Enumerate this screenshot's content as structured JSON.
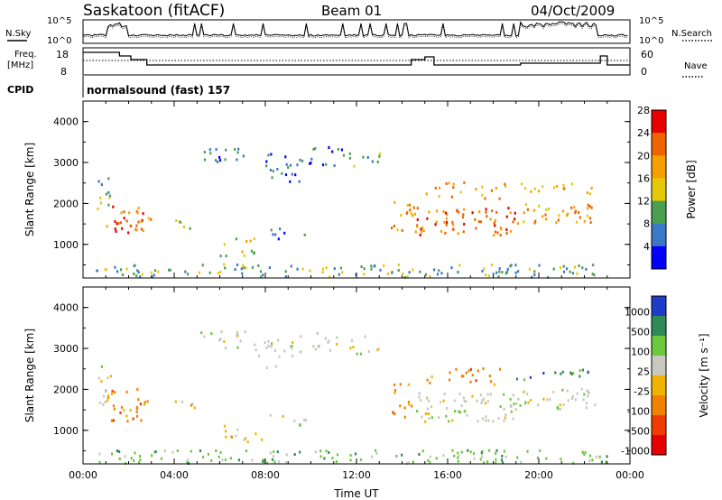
{
  "header": {
    "station": "Saskatoon (fitACF)",
    "beam": "Beam 01",
    "date": "04/Oct/2009"
  },
  "noise_panel": {
    "left_label": "N.Sky",
    "right_label": "N.Search",
    "left_ticks": [
      "10^5",
      "10^0"
    ],
    "right_ticks": [
      "10^5",
      "10^0"
    ]
  },
  "freq_panel": {
    "left_label_line1": "Freq.",
    "left_label_line2": "[MHz]",
    "right_label": "Nave",
    "left_ticks": [
      "18",
      "8"
    ],
    "right_ticks": [
      "60",
      "0"
    ]
  },
  "cpid_panel": {
    "label": "CPID",
    "text": "normalsound (fast) 157"
  },
  "chart_data": [
    {
      "type": "heatmap",
      "title": "",
      "ylabel": "Slant Range [km]",
      "ylim": [
        180,
        4500
      ],
      "xlim": [
        "00:00",
        "24:00"
      ],
      "yticks": [
        "1000",
        "2000",
        "3000",
        "4000"
      ],
      "colorbar": {
        "label": "Power [dB]",
        "ticks": [
          "4",
          "8",
          "12",
          "16",
          "20",
          "24",
          "28"
        ],
        "colors": [
          "#0000ff",
          "#3c78c8",
          "#4aa050",
          "#e6c80a",
          "#f5a000",
          "#f06400",
          "#e60000"
        ]
      }
    },
    {
      "type": "heatmap",
      "title": "",
      "ylabel": "Slant Range [km]",
      "xlabel": "Time UT",
      "ylim": [
        180,
        4500
      ],
      "xlim": [
        "00:00",
        "24:00"
      ],
      "yticks": [
        "1000",
        "2000",
        "3000",
        "4000"
      ],
      "xticks": [
        "00:00",
        "04:00",
        "08:00",
        "12:00",
        "16:00",
        "20:00",
        "00:00"
      ],
      "colorbar": {
        "label": "Velocity [m s⁻¹]",
        "ticks": [
          "1000",
          "500",
          "100",
          "25",
          "-25",
          "-100",
          "-500",
          "-1000"
        ],
        "colors": [
          "#1e3cc8",
          "#2e8b57",
          "#6cc83c",
          "#c8c8c0",
          "#f0b400",
          "#f08200",
          "#f03c00",
          "#e60000"
        ]
      }
    }
  ]
}
